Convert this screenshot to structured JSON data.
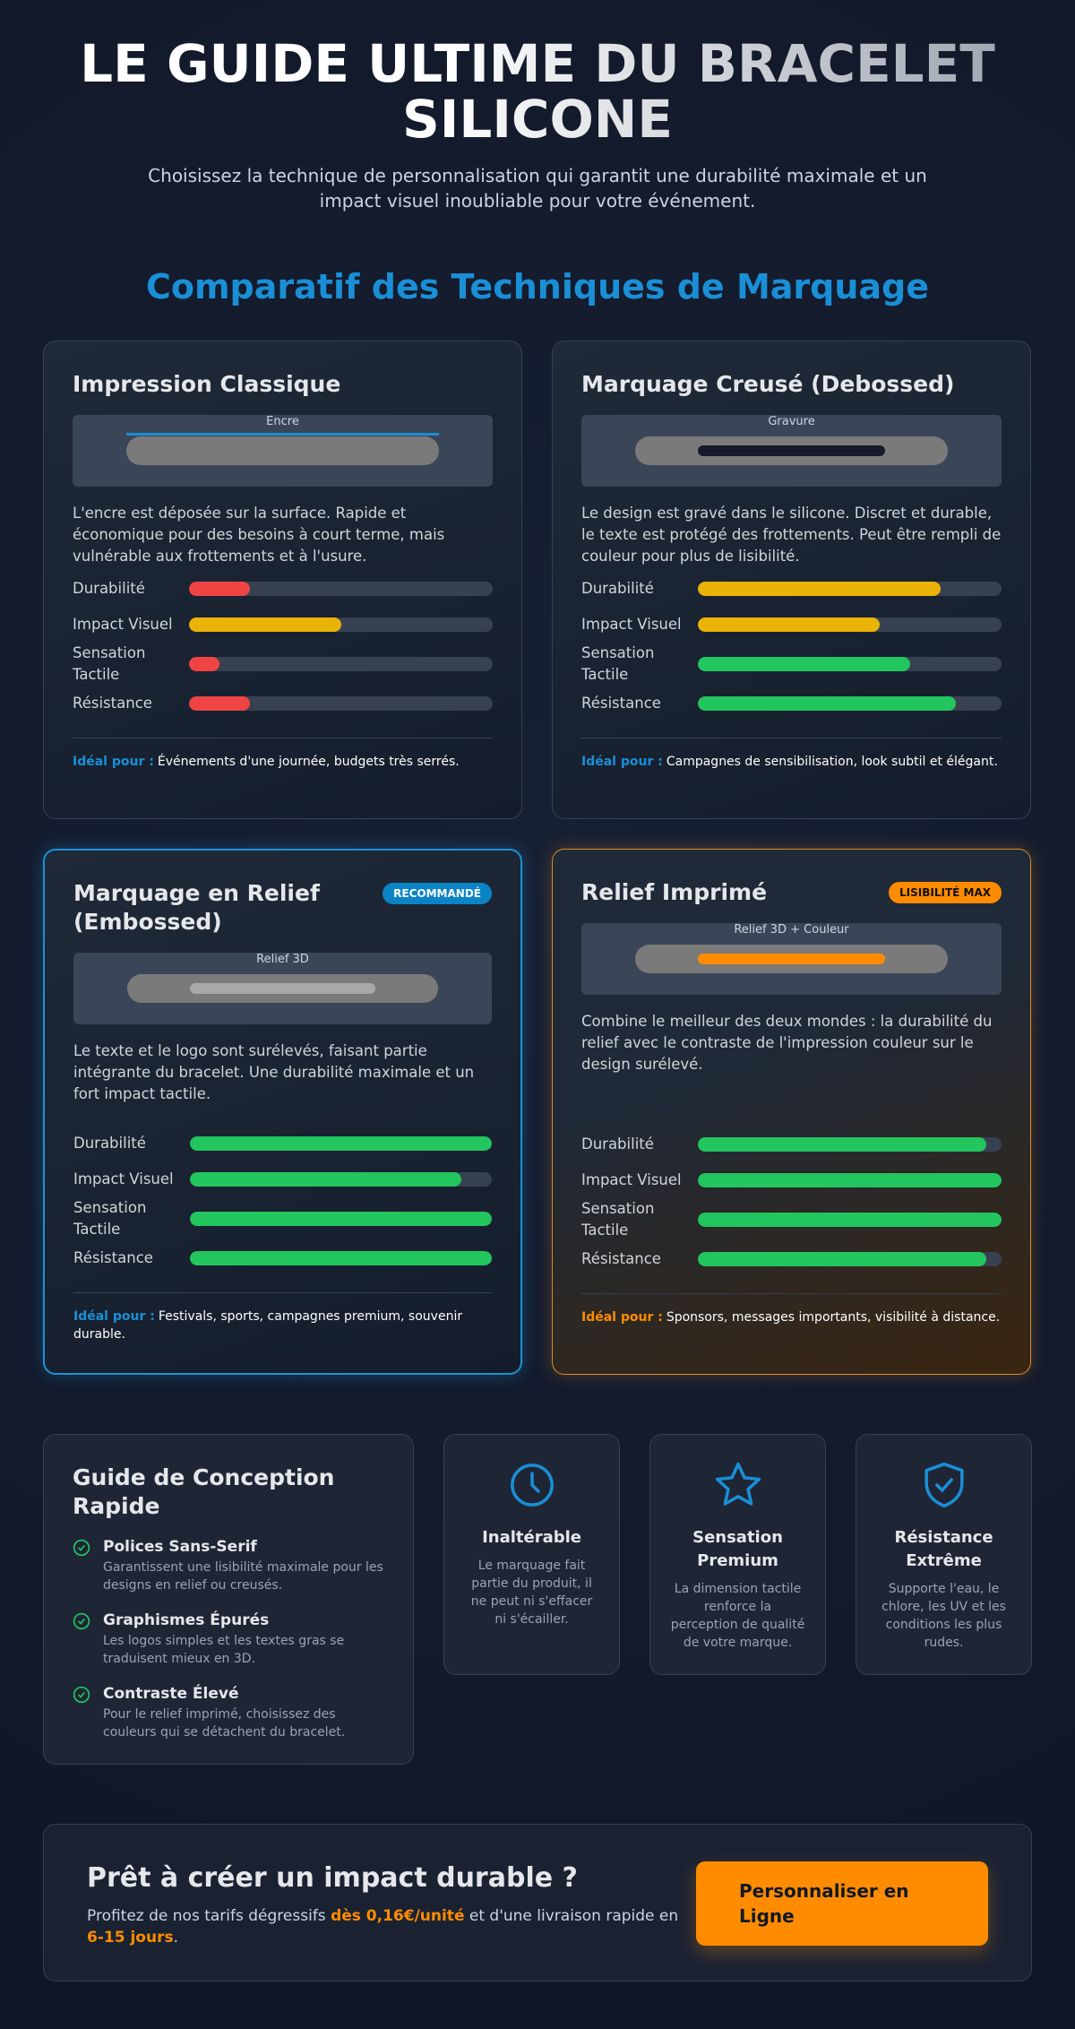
{
  "header": {
    "title": "LE GUIDE ULTIME DU BRACELET SILICONE",
    "subtitle": "Choisissez la technique de personnalisation qui garantit une durabilité maximale et un impact visuel inoubliable pour votre événement."
  },
  "section_title": "Comparatif des Techniques de Marquage",
  "cards": [
    {
      "title": "Impression Classique",
      "preview_label": "Encre",
      "description": "L'encre est déposée sur la surface. Rapide et économique pour des besoins à court terme, mais vulnérable aux frottements et à l'usure.",
      "ratings": [
        {
          "label": "Durabilité",
          "value": 20,
          "color": "#ef4444"
        },
        {
          "label": "Impact Visuel",
          "value": 50,
          "color": "#eab308"
        },
        {
          "label": "Sensation Tactile",
          "value": 10,
          "color": "#ef4444"
        },
        {
          "label": "Résistance",
          "value": 20,
          "color": "#ef4444"
        }
      ],
      "ideal_label": "Idéal pour :",
      "ideal_text": "Événements d'une journée, budgets très serrés."
    },
    {
      "title": "Marquage Creusé (Debossed)",
      "preview_label": "Gravure",
      "description": "Le design est gravé dans le silicone. Discret et durable, le texte est protégé des frottements. Peut être rempli de couleur pour plus de lisibilité.",
      "ratings": [
        {
          "label": "Durabilité",
          "value": 80,
          "color": "#eab308"
        },
        {
          "label": "Impact Visuel",
          "value": 60,
          "color": "#eab308"
        },
        {
          "label": "Sensation Tactile",
          "value": 70,
          "color": "#22c55e"
        },
        {
          "label": "Résistance",
          "value": 85,
          "color": "#22c55e"
        }
      ],
      "ideal_label": "Idéal pour :",
      "ideal_text": "Campagnes de sensibilisation, look subtil et élégant."
    },
    {
      "title": "Marquage en Relief (Embossed)",
      "badge": "RECOMMANDÉ",
      "preview_label": "Relief 3D",
      "description": "Le texte et le logo sont surélevés, faisant partie intégrante du bracelet. Une durabilité maximale et un fort impact tactile.",
      "ratings": [
        {
          "label": "Durabilité",
          "value": 100,
          "color": "#22c55e"
        },
        {
          "label": "Impact Visuel",
          "value": 90,
          "color": "#22c55e"
        },
        {
          "label": "Sensation Tactile",
          "value": 100,
          "color": "#22c55e"
        },
        {
          "label": "Résistance",
          "value": 100,
          "color": "#22c55e"
        }
      ],
      "ideal_label": "Idéal pour :",
      "ideal_text": "Festivals, sports, campagnes premium, souvenir durable."
    },
    {
      "title": "Relief Imprimé",
      "badge": "LISIBILITÉ MAX",
      "preview_label": "Relief 3D + Couleur",
      "description": "Combine le meilleur des deux mondes : la durabilité du relief avec le contraste de l'impression couleur sur le design surélevé.",
      "ratings": [
        {
          "label": "Durabilité",
          "value": 95,
          "color": "#22c55e"
        },
        {
          "label": "Impact Visuel",
          "value": 100,
          "color": "#22c55e"
        },
        {
          "label": "Sensation Tactile",
          "value": 100,
          "color": "#22c55e"
        },
        {
          "label": "Résistance",
          "value": 95,
          "color": "#22c55e"
        }
      ],
      "ideal_label": "Idéal pour :",
      "ideal_text": "Sponsors, messages importants, visibilité à distance."
    }
  ],
  "guide": {
    "title": "Guide de Conception Rapide",
    "items": [
      {
        "title": "Polices Sans-Serif",
        "text": "Garantissent une lisibilité maximale pour les designs en relief ou creusés."
      },
      {
        "title": "Graphismes Épurés",
        "text": "Les logos simples et les textes gras se traduisent mieux en 3D."
      },
      {
        "title": "Contraste Élevé",
        "text": "Pour le relief imprimé, choisissez des couleurs qui se détachent du bracelet."
      }
    ]
  },
  "features": [
    {
      "title": "Inaltérable",
      "text": "Le marquage fait partie du produit, il ne peut ni s'effacer ni s'écailler."
    },
    {
      "title": "Sensation Premium",
      "text": "La dimension tactile renforce la perception de qualité de votre marque."
    },
    {
      "title": "Résistance Extrême",
      "text": "Supporte l'eau, le chlore, les UV et les conditions les plus rudes."
    }
  ],
  "cta": {
    "title": "Prêt à créer un impact durable ?",
    "text": [
      "Profitez de nos tarifs dégressifs ",
      "dès 0,16€/unité",
      " et d'une livraison rapide en ",
      "6-15 jours",
      "."
    ],
    "button": "Personnaliser en Ligne"
  }
}
